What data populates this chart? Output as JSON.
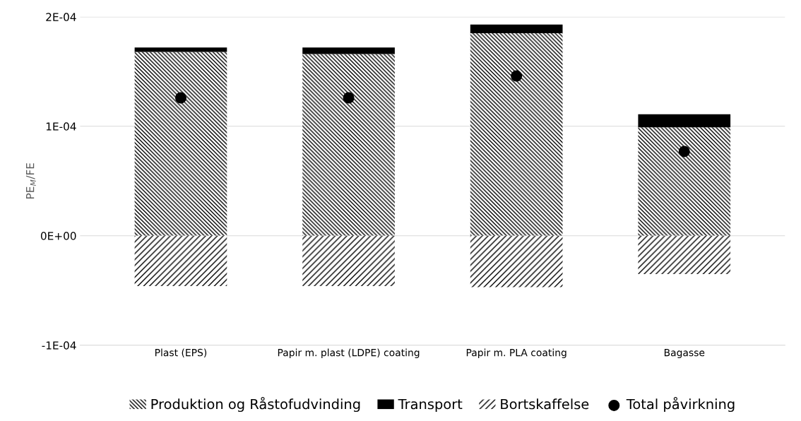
{
  "chart_data": {
    "type": "bar",
    "stacked": true,
    "ylabel": "PE$_{M}$/FE",
    "categories": [
      "Plast (EPS)",
      "Papir m. plast (LDPE) coating",
      "Papir m. PLA coating",
      "Bagasse"
    ],
    "series": [
      {
        "name": "Produktion og Råstofudvinding",
        "color": "#000000",
        "values": [
          0.000168,
          0.000166,
          0.000185,
          9.9e-05
        ]
      },
      {
        "name": "Transport",
        "color": "#000000",
        "values": [
          4e-06,
          6e-06,
          8e-06,
          1.2e-05
        ]
      },
      {
        "name": "Bortskaffelse",
        "color": "#000000",
        "values": [
          -4.6e-05,
          -4.6e-05,
          -4.7e-05,
          -3.5e-05
        ]
      },
      {
        "name": "Total påvirkning",
        "type": "scatter",
        "marker": "circle",
        "color": "#000000",
        "x": [
          "Plast (EPS)",
          "Papir m. plast (LDPE) coating",
          "Papir m. PLA coating",
          "Bagasse"
        ],
        "values": [
          0.000126,
          0.000126,
          0.000146,
          7.7e-05
        ]
      }
    ],
    "ylim": [
      -0.0001,
      0.0002
    ],
    "yticks": [
      {
        "value": -0.0001,
        "label": "-1E-04"
      },
      {
        "value": 0,
        "label": "0E+00"
      },
      {
        "value": 0.0001,
        "label": "1E-04"
      },
      {
        "value": 0.0002,
        "label": "2E-04"
      }
    ],
    "grid": "y",
    "legend": "bottom"
  }
}
